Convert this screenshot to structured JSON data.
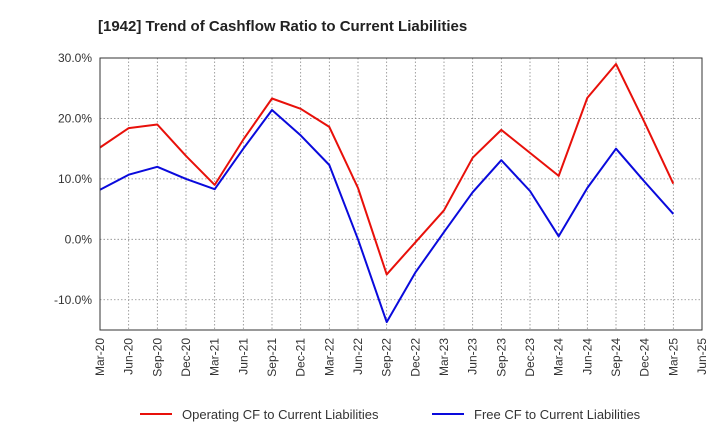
{
  "chart_data": {
    "type": "line",
    "title": "[1942]  Trend of Cashflow Ratio to Current Liabilities",
    "xlabel": "",
    "ylabel": "",
    "categories": [
      "Mar-20",
      "Jun-20",
      "Sep-20",
      "Dec-20",
      "Mar-21",
      "Jun-21",
      "Sep-21",
      "Dec-21",
      "Mar-22",
      "Jun-22",
      "Sep-22",
      "Dec-22",
      "Mar-23",
      "Jun-23",
      "Sep-23",
      "Dec-23",
      "Mar-24",
      "Jun-24",
      "Sep-24",
      "Dec-24",
      "Mar-25",
      "Jun-25"
    ],
    "y_ticks": [
      30,
      20,
      10,
      0,
      -10
    ],
    "y_tick_labels": [
      "30.0%",
      "20.0%",
      "10.0%",
      "0.0%",
      "-10.0%"
    ],
    "ylim": [
      -15,
      30
    ],
    "grid": true,
    "legend_position": "bottom",
    "series": [
      {
        "name": "Operating CF to Current Liabilities",
        "color": "#e8100a",
        "values": [
          15.2,
          18.4,
          19.0,
          13.8,
          9.0,
          16.5,
          23.3,
          21.6,
          18.6,
          8.5,
          -5.8,
          -0.5,
          4.8,
          13.5,
          18.1,
          14.3,
          10.5,
          23.4,
          29.0,
          19.3,
          9.2,
          null
        ]
      },
      {
        "name": "Free CF to Current Liabilities",
        "color": "#0a0adc",
        "values": [
          8.2,
          10.7,
          12.0,
          10.0,
          8.3,
          15.0,
          21.4,
          17.2,
          12.3,
          0.0,
          -13.7,
          -5.5,
          1.2,
          7.8,
          13.1,
          8.0,
          0.5,
          8.5,
          15.0,
          9.5,
          4.2,
          null
        ]
      }
    ]
  }
}
